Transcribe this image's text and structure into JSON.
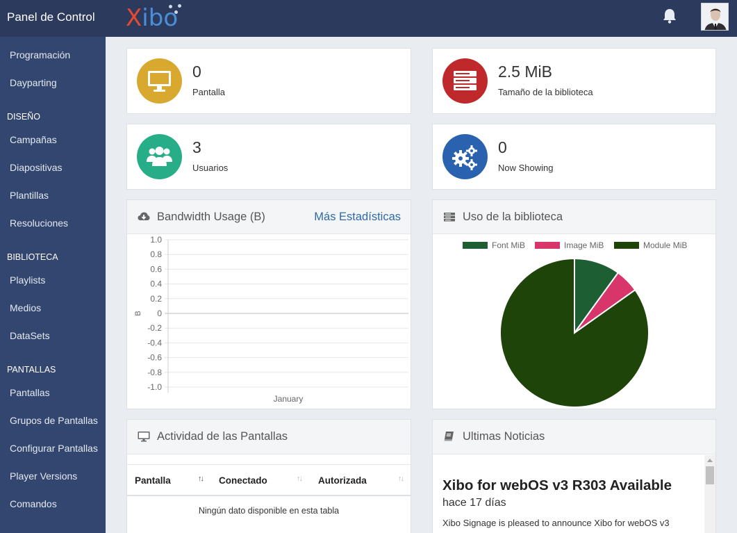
{
  "brand": {
    "title": "Panel de Control",
    "logo": "Xibo"
  },
  "header": {
    "notifications_icon": "bell-icon",
    "user_avatar": "user-avatar"
  },
  "sidebar": {
    "items_top": [
      "Programación",
      "Dayparting"
    ],
    "sections": [
      {
        "header": "DISEÑO",
        "items": [
          "Campañas",
          "Diapositivas",
          "Plantillas",
          "Resoluciones"
        ]
      },
      {
        "header": "BIBLIOTECA",
        "items": [
          "Playlists",
          "Medios",
          "DataSets"
        ]
      },
      {
        "header": "PANTALLAS",
        "items": [
          "Pantallas",
          "Grupos de Pantallas",
          "Configurar Pantallas",
          "Player Versions",
          "Comandos"
        ]
      }
    ]
  },
  "stats": {
    "displays": {
      "value": "0",
      "label": "Pantalla",
      "icon": "monitor-icon",
      "color": "#d9a92f"
    },
    "library": {
      "value": "2.5 MiB",
      "label": "Tamaño de la biblioteca",
      "icon": "server-icon",
      "color": "#c0292c"
    },
    "users": {
      "value": "3",
      "label": "Usuarios",
      "icon": "users-icon",
      "color": "#27ae88"
    },
    "now_showing": {
      "value": "0",
      "label": "Now Showing",
      "icon": "gears-icon",
      "color": "#2b62b0"
    }
  },
  "bandwidth": {
    "title": "Bandwidth Usage (B)",
    "more_link": "Más Estadísticas",
    "icon": "cloud-download-icon"
  },
  "library_usage": {
    "title": "Uso de la biblioteca",
    "icon": "server-icon"
  },
  "display_activity": {
    "title": "Actividad de las Pantallas",
    "icon": "monitor-icon",
    "columns": [
      "Pantalla",
      "Conectado",
      "Autorizada"
    ],
    "empty_message": "Ningún dato disponible en esta tabla"
  },
  "news": {
    "title": "Ultimas Noticias",
    "icon": "book-icon",
    "item_title": "Xibo for webOS v3 R303 Available",
    "item_date": "hace 17 días",
    "item_body": "Xibo Signage is pleased to announce Xibo for webOS v3"
  },
  "chart_data": [
    {
      "type": "line",
      "categories": [
        "January"
      ],
      "series": [],
      "ylabel": "B",
      "ylim": [
        -1.0,
        1.0
      ],
      "yticks": [
        "1.0",
        "0.8",
        "0.6",
        "0.4",
        "0.2",
        "0",
        "-0.2",
        "-0.4",
        "-0.6",
        "-0.8",
        "-1.0"
      ],
      "grid": true
    },
    {
      "type": "pie",
      "legend_position": "top",
      "labels": [
        "Font MiB",
        "Image MiB",
        "Module MiB"
      ],
      "values": [
        0.25,
        0.13,
        2.12
      ],
      "colors": [
        "#1d5e33",
        "#d8356a",
        "#1e4409"
      ]
    }
  ]
}
